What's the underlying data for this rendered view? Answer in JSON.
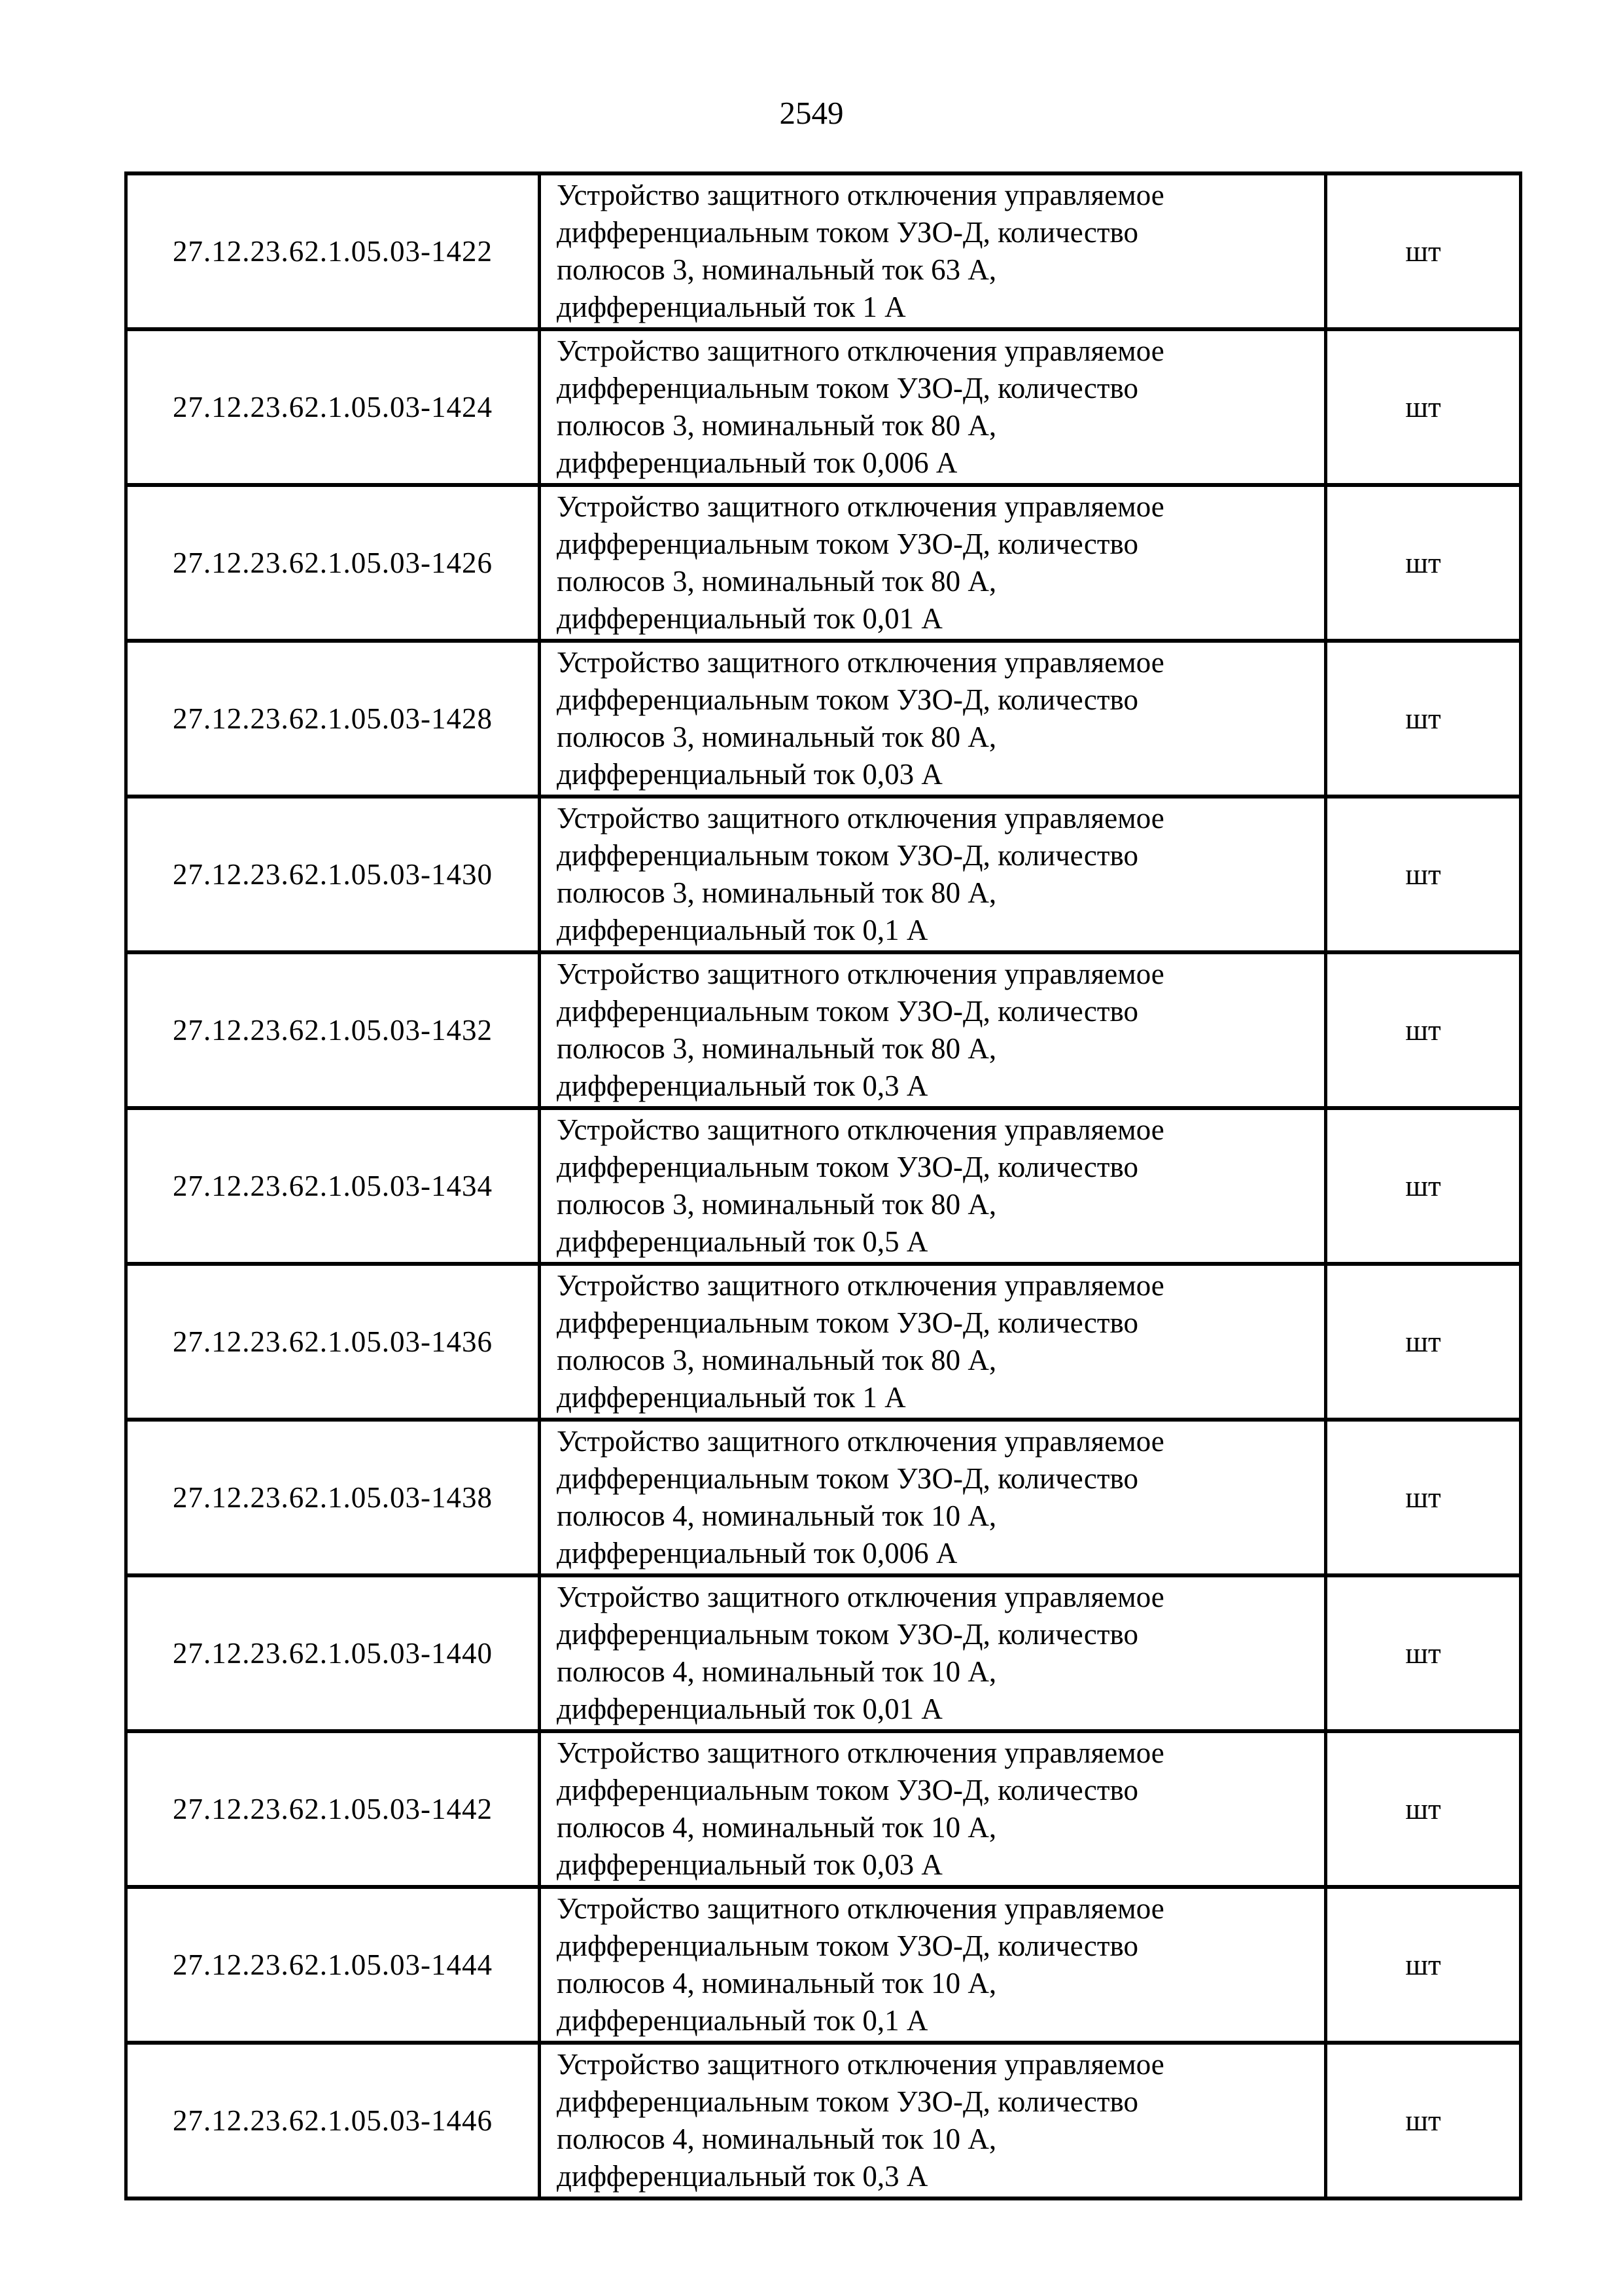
{
  "page": {
    "number": "2549"
  },
  "table": {
    "columns": [
      "code",
      "description",
      "unit"
    ],
    "rows": [
      {
        "code": "27.12.23.62.1.05.03-1422",
        "description": "Устройство защитного отключения управляемое\nдифференциальным током УЗО-Д, количество\nполюсов 3, номинальный ток 63 А,\nдифференциальный ток 1 А",
        "unit": "шт"
      },
      {
        "code": "27.12.23.62.1.05.03-1424",
        "description": "Устройство защитного отключения управляемое\nдифференциальным током УЗО-Д, количество\nполюсов 3, номинальный ток 80 А,\nдифференциальный ток 0,006 А",
        "unit": "шт"
      },
      {
        "code": "27.12.23.62.1.05.03-1426",
        "description": "Устройство защитного отключения управляемое\nдифференциальным током УЗО-Д, количество\nполюсов 3, номинальный ток 80 А,\nдифференциальный ток 0,01 А",
        "unit": "шт"
      },
      {
        "code": "27.12.23.62.1.05.03-1428",
        "description": "Устройство защитного отключения управляемое\nдифференциальным током УЗО-Д, количество\nполюсов 3, номинальный ток 80 А,\nдифференциальный ток 0,03 А",
        "unit": "шт"
      },
      {
        "code": "27.12.23.62.1.05.03-1430",
        "description": "Устройство защитного отключения управляемое\nдифференциальным током УЗО-Д, количество\nполюсов 3, номинальный ток 80 А,\nдифференциальный ток 0,1 А",
        "unit": "шт"
      },
      {
        "code": "27.12.23.62.1.05.03-1432",
        "description": "Устройство защитного отключения управляемое\nдифференциальным током УЗО-Д, количество\nполюсов 3, номинальный ток 80 А,\nдифференциальный ток 0,3 А",
        "unit": "шт"
      },
      {
        "code": "27.12.23.62.1.05.03-1434",
        "description": "Устройство защитного отключения управляемое\nдифференциальным током УЗО-Д, количество\nполюсов 3, номинальный ток 80 А,\nдифференциальный ток 0,5 А",
        "unit": "шт"
      },
      {
        "code": "27.12.23.62.1.05.03-1436",
        "description": "Устройство защитного отключения управляемое\nдифференциальным током УЗО-Д, количество\nполюсов 3, номинальный ток 80 А,\nдифференциальный ток 1 А",
        "unit": "шт"
      },
      {
        "code": "27.12.23.62.1.05.03-1438",
        "description": "Устройство защитного отключения управляемое\nдифференциальным током УЗО-Д, количество\nполюсов 4, номинальный ток 10 А,\nдифференциальный ток 0,006 А",
        "unit": "шт"
      },
      {
        "code": "27.12.23.62.1.05.03-1440",
        "description": "Устройство защитного отключения управляемое\nдифференциальным током УЗО-Д, количество\nполюсов 4, номинальный ток 10 А,\nдифференциальный ток 0,01 А",
        "unit": "шт"
      },
      {
        "code": "27.12.23.62.1.05.03-1442",
        "description": "Устройство защитного отключения управляемое\nдифференциальным током УЗО-Д, количество\nполюсов 4, номинальный ток 10 А,\nдифференциальный ток 0,03 А",
        "unit": "шт"
      },
      {
        "code": "27.12.23.62.1.05.03-1444",
        "description": "Устройство защитного отключения управляемое\nдифференциальным током УЗО-Д, количество\nполюсов 4, номинальный ток 10 А,\nдифференциальный ток 0,1 А",
        "unit": "шт"
      },
      {
        "code": "27.12.23.62.1.05.03-1446",
        "description": "Устройство защитного отключения управляемое\nдифференциальным током УЗО-Д, количество\nполюсов 4, номинальный ток 10 А,\nдифференциальный ток 0,3 А",
        "unit": "шт"
      }
    ]
  }
}
